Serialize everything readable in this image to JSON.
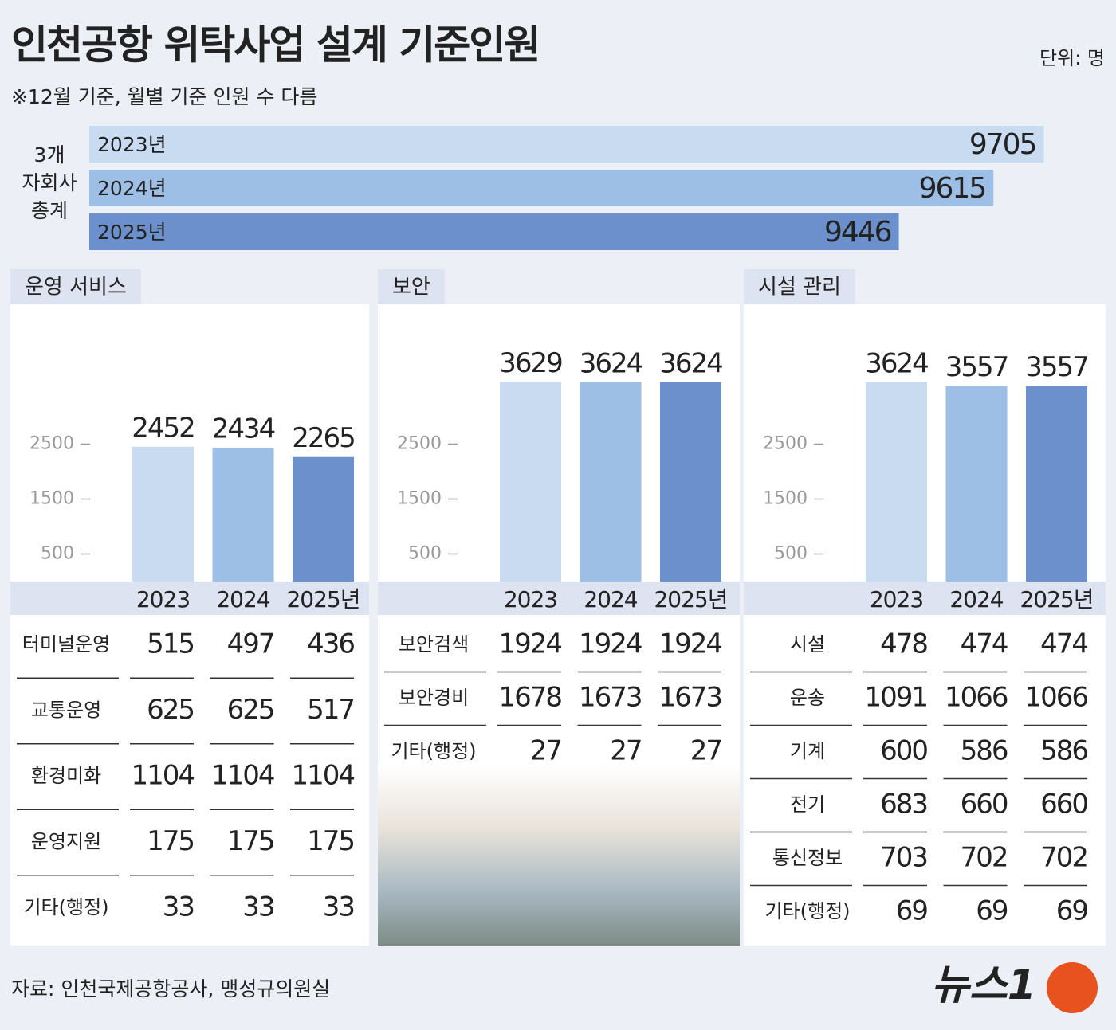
{
  "title": "인천공항 위탁사업 설계 기준인원",
  "unit": "단위: 명",
  "note": "※12월 기준, 월별 기준 인원 수 다름",
  "source": "자료: 인천국제공항공사, 맹성규의원실",
  "logo": "뉴스1",
  "chart_data": [
    {
      "type": "hbar",
      "label": [
        "3개",
        "자회사",
        "총계"
      ],
      "categories": [
        "2023년",
        "2024년",
        "2025년"
      ],
      "values": [
        9705,
        9615,
        9446
      ],
      "colors": [
        "#c8dbf0",
        "#9dbfe5",
        "#6c90cb"
      ],
      "xlim": [
        8000,
        9720
      ]
    },
    {
      "type": "bar",
      "title": "운영 서비스",
      "categories": [
        "2023",
        "2024",
        "2025년"
      ],
      "values": [
        2452,
        2434,
        2265
      ],
      "colors": [
        "#c8dbf0",
        "#9dbfe5",
        "#6c90cb"
      ],
      "ylim": [
        0,
        5000
      ],
      "yticks": [
        500,
        1500,
        2500
      ]
    },
    {
      "type": "bar",
      "title": "보안",
      "categories": [
        "2023",
        "2024",
        "2025년"
      ],
      "values": [
        3629,
        3624,
        3624
      ],
      "colors": [
        "#c8dbf0",
        "#9dbfe5",
        "#6c90cb"
      ],
      "ylim": [
        0,
        5000
      ],
      "yticks": [
        500,
        1500,
        2500
      ]
    },
    {
      "type": "bar",
      "title": "시설 관리",
      "categories": [
        "2023",
        "2024",
        "2025년"
      ],
      "values": [
        3624,
        3557,
        3557
      ],
      "colors": [
        "#c8dbf0",
        "#9dbfe5",
        "#6c90cb"
      ],
      "ylim": [
        0,
        5000
      ],
      "yticks": [
        500,
        1500,
        2500
      ]
    }
  ],
  "tables": [
    {
      "rows": [
        {
          "label": "터미널운영",
          "values": [
            515,
            497,
            436
          ]
        },
        {
          "label": "교통운영",
          "values": [
            625,
            625,
            517
          ]
        },
        {
          "label": "환경미화",
          "values": [
            1104,
            1104,
            1104
          ]
        },
        {
          "label": "운영지원",
          "values": [
            175,
            175,
            175
          ]
        },
        {
          "label": "기타(행정)",
          "values": [
            33,
            33,
            33
          ]
        }
      ]
    },
    {
      "rows": [
        {
          "label": "보안검색",
          "values": [
            1924,
            1924,
            1924
          ]
        },
        {
          "label": "보안경비",
          "values": [
            1678,
            1673,
            1673
          ]
        },
        {
          "label": "기타(행정)",
          "values": [
            27,
            27,
            27
          ]
        }
      ]
    },
    {
      "rows": [
        {
          "label": "시설",
          "values": [
            478,
            474,
            474
          ]
        },
        {
          "label": "운송",
          "values": [
            1091,
            1066,
            1066
          ]
        },
        {
          "label": "기계",
          "values": [
            600,
            586,
            586
          ]
        },
        {
          "label": "전기",
          "values": [
            683,
            660,
            660
          ]
        },
        {
          "label": "통신정보",
          "values": [
            703,
            702,
            702
          ]
        },
        {
          "label": "기타(행정)",
          "values": [
            69,
            69,
            69
          ]
        }
      ]
    }
  ]
}
